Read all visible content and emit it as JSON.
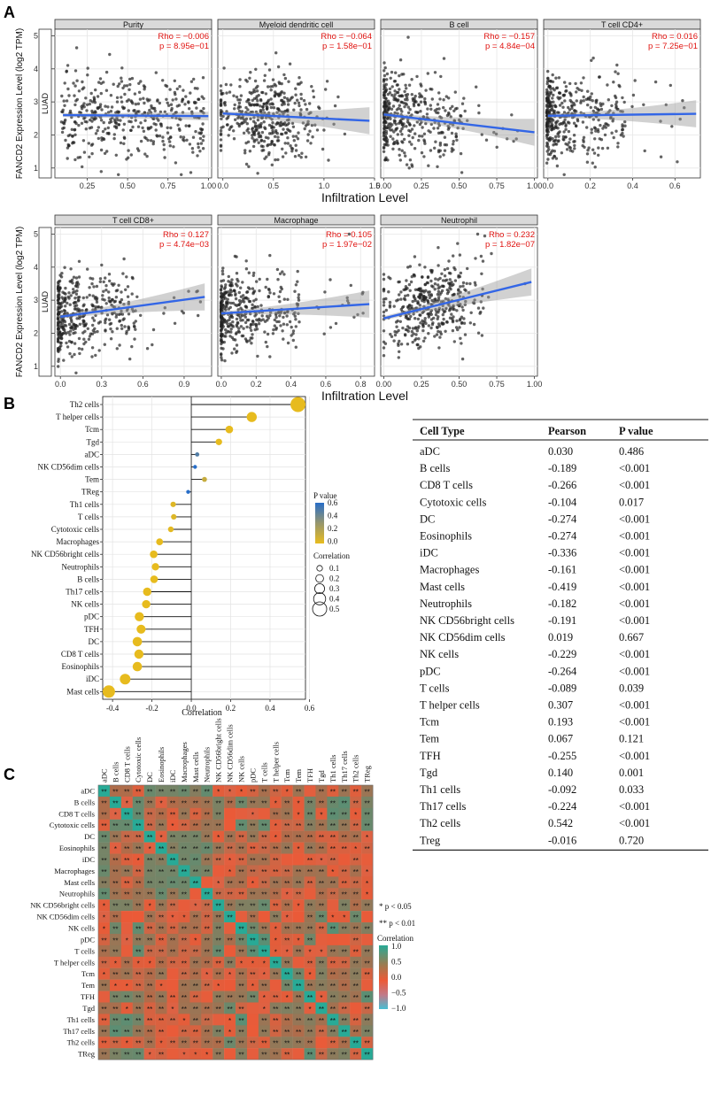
{
  "panel_labels": {
    "a": "A",
    "b": "B",
    "c": "C"
  },
  "chart_data": [
    {
      "type": "scatter",
      "id": "panel_a",
      "cancer_label": "LUAD",
      "ylabel": "FANCD2 Expression Level (log2 TPM)",
      "xlabel": "Infiltration Level",
      "ylim": [
        0.7,
        5.2
      ],
      "yticks": [
        1,
        2,
        3,
        4,
        5
      ],
      "facets": [
        {
          "title": "Purity",
          "xlim": [
            0.05,
            1.02
          ],
          "xticks": [
            "0.25",
            "0.50",
            "0.75",
            "1.00"
          ],
          "xtick_vals": [
            0.25,
            0.5,
            0.75,
            1.0
          ],
          "rho": "Rho = −0.006",
          "p": "p = 8.95e−01",
          "fit": [
            [
              0.1,
              2.6
            ],
            [
              1.0,
              2.57
            ]
          ],
          "dist": "uniform"
        },
        {
          "title": "Myeloid dendritic cell",
          "xlim": [
            -0.05,
            1.5
          ],
          "xticks": [
            "0.0",
            "0.5",
            "1.0",
            "1.5"
          ],
          "xtick_vals": [
            0.0,
            0.5,
            1.0,
            1.5
          ],
          "rho": "Rho = −0.064",
          "p": "p = 1.58e−01",
          "fit": [
            [
              0.0,
              2.65
            ],
            [
              1.45,
              2.43
            ]
          ],
          "dist": "mid"
        },
        {
          "title": "B cell",
          "xlim": [
            -0.02,
            1.02
          ],
          "xticks": [
            "0.00",
            "0.25",
            "0.50",
            "0.75",
            "1.00"
          ],
          "xtick_vals": [
            0.0,
            0.25,
            0.5,
            0.75,
            1.0
          ],
          "rho": "Rho = −0.157",
          "p": "p = 4.84e−04",
          "fit": [
            [
              0.0,
              2.62
            ],
            [
              1.0,
              2.08
            ]
          ],
          "dist": "left"
        },
        {
          "title": "T cell CD4+",
          "xlim": [
            -0.02,
            0.72
          ],
          "xticks": [
            "0.0",
            "0.2",
            "0.4",
            "0.6"
          ],
          "xtick_vals": [
            0.0,
            0.2,
            0.4,
            0.6
          ],
          "rho": "Rho = 0.016",
          "p": "p = 7.25e−01",
          "fit": [
            [
              0.0,
              2.58
            ],
            [
              0.7,
              2.64
            ]
          ],
          "dist": "left"
        },
        {
          "title": "T cell CD8+",
          "xlim": [
            -0.04,
            1.1
          ],
          "xticks": [
            "0.0",
            "0.3",
            "0.6",
            "0.9"
          ],
          "xtick_vals": [
            0.0,
            0.3,
            0.6,
            0.9
          ],
          "rho": "Rho = 0.127",
          "p": "p = 4.74e−03",
          "fit": [
            [
              0.0,
              2.5
            ],
            [
              1.05,
              3.1
            ]
          ],
          "dist": "left"
        },
        {
          "title": "Macrophage",
          "xlim": [
            -0.02,
            0.88
          ],
          "xticks": [
            "0.0",
            "0.2",
            "0.4",
            "0.6",
            "0.8"
          ],
          "xtick_vals": [
            0.0,
            0.2,
            0.4,
            0.6,
            0.8
          ],
          "rho": "Rho = 0.105",
          "p": "p = 1.97e−02",
          "fit": [
            [
              0.0,
              2.6
            ],
            [
              0.85,
              2.88
            ]
          ],
          "dist": "left"
        },
        {
          "title": "Neutrophil",
          "xlim": [
            -0.02,
            1.02
          ],
          "xticks": [
            "0.00",
            "0.25",
            "0.50",
            "0.75",
            "1.00"
          ],
          "xtick_vals": [
            0.0,
            0.25,
            0.5,
            0.75,
            1.0
          ],
          "rho": "Rho = 0.232",
          "p": "p = 1.82e−07",
          "fit": [
            [
              0.0,
              2.45
            ],
            [
              0.98,
              3.55
            ]
          ],
          "dist": "mid"
        }
      ]
    },
    {
      "type": "lollipop",
      "id": "panel_b",
      "xlabel": "Correlation",
      "xlim": [
        -0.45,
        0.58
      ],
      "xticks": [
        "-0.4",
        "-0.2",
        "0.0",
        "0.2",
        "0.4",
        "0.6"
      ],
      "xtick_vals": [
        -0.4,
        -0.2,
        0.0,
        0.2,
        0.4,
        0.6
      ],
      "legend_p_title": "P value",
      "legend_p_ticks": [
        "0.6",
        "0.4",
        "0.2",
        "0.0"
      ],
      "legend_corr_title": "Correlation",
      "legend_corr_ticks": [
        "0.1",
        "0.2",
        "0.3",
        "0.4",
        "0.5"
      ],
      "categories": [
        "Th2 cells",
        "T helper cells",
        "Tcm",
        "Tgd",
        "aDC",
        "NK CD56dim cells",
        "Tem",
        "TReg",
        "Th1 cells",
        "T cells",
        "Cytotoxic cells",
        "Macrophages",
        "NK CD56bright cells",
        "Neutrophils",
        "B cells",
        "Th17 cells",
        "NK cells",
        "pDC",
        "TFH",
        "DC",
        "CD8 T cells",
        "Eosinophils",
        "iDC",
        "Mast cells"
      ],
      "values": [
        0.542,
        0.307,
        0.193,
        0.14,
        0.03,
        0.019,
        0.067,
        -0.016,
        -0.092,
        -0.089,
        -0.104,
        -0.161,
        -0.191,
        -0.182,
        -0.189,
        -0.224,
        -0.229,
        -0.264,
        -0.255,
        -0.274,
        -0.266,
        -0.274,
        -0.336,
        -0.419
      ],
      "pvalues": [
        0.001,
        0.001,
        0.001,
        0.001,
        0.486,
        0.667,
        0.121,
        0.72,
        0.033,
        0.039,
        0.017,
        0.001,
        0.001,
        0.001,
        0.001,
        0.001,
        0.001,
        0.001,
        0.001,
        0.001,
        0.001,
        0.001,
        0.001,
        0.001
      ]
    },
    {
      "type": "table",
      "id": "panel_b_table",
      "columns": [
        "Cell Type",
        "Pearson",
        "P value"
      ],
      "rows": [
        [
          "aDC",
          "0.030",
          "0.486"
        ],
        [
          "B cells",
          "-0.189",
          "<0.001"
        ],
        [
          "CD8 T cells",
          "-0.266",
          "<0.001"
        ],
        [
          "Cytotoxic cells",
          "-0.104",
          "0.017"
        ],
        [
          "DC",
          "-0.274",
          "<0.001"
        ],
        [
          "Eosinophils",
          "-0.274",
          "<0.001"
        ],
        [
          "iDC",
          "-0.336",
          "<0.001"
        ],
        [
          "Macrophages",
          "-0.161",
          "<0.001"
        ],
        [
          "Mast cells",
          "-0.419",
          "<0.001"
        ],
        [
          "Neutrophils",
          "-0.182",
          "<0.001"
        ],
        [
          "NK CD56bright cells",
          "-0.191",
          "<0.001"
        ],
        [
          "NK CD56dim cells",
          "0.019",
          "0.667"
        ],
        [
          "NK cells",
          "-0.229",
          "<0.001"
        ],
        [
          "pDC",
          "-0.264",
          "<0.001"
        ],
        [
          "T cells",
          "-0.089",
          "0.039"
        ],
        [
          "T helper cells",
          "0.307",
          "<0.001"
        ],
        [
          "Tcm",
          "0.193",
          "<0.001"
        ],
        [
          "Tem",
          "0.067",
          "0.121"
        ],
        [
          "TFH",
          "-0.255",
          "<0.001"
        ],
        [
          "Tgd",
          "0.140",
          "0.001"
        ],
        [
          "Th1 cells",
          "-0.092",
          "0.033"
        ],
        [
          "Th17 cells",
          "-0.224",
          "<0.001"
        ],
        [
          "Th2 cells",
          "0.542",
          "<0.001"
        ],
        [
          "Treg",
          "-0.016",
          "0.720"
        ]
      ]
    },
    {
      "type": "heatmap",
      "id": "panel_c",
      "labels": [
        "aDC",
        "B cells",
        "CD8 T cells",
        "Cytotoxic cells",
        "DC",
        "Eosinophils",
        "iDC",
        "Macrophages",
        "Mast cells",
        "Neutrophils",
        "NK CD56bright cells",
        "NK CD56dim cells",
        "NK cells",
        "pDC",
        "T cells",
        "T helper cells",
        "Tcm",
        "Tem",
        "TFH",
        "Tgd",
        "Th1 cells",
        "Th17 cells",
        "Th2 cells",
        "TReg"
      ],
      "sig_legend": [
        "* p < 0.05",
        "** p < 0.01"
      ],
      "legend_title": "Correlation",
      "legend_ticks": [
        "1.0",
        "0.5",
        "0.0",
        "−0.5",
        "−1.0"
      ],
      "mark": "**",
      "mark_single": "*"
    }
  ]
}
